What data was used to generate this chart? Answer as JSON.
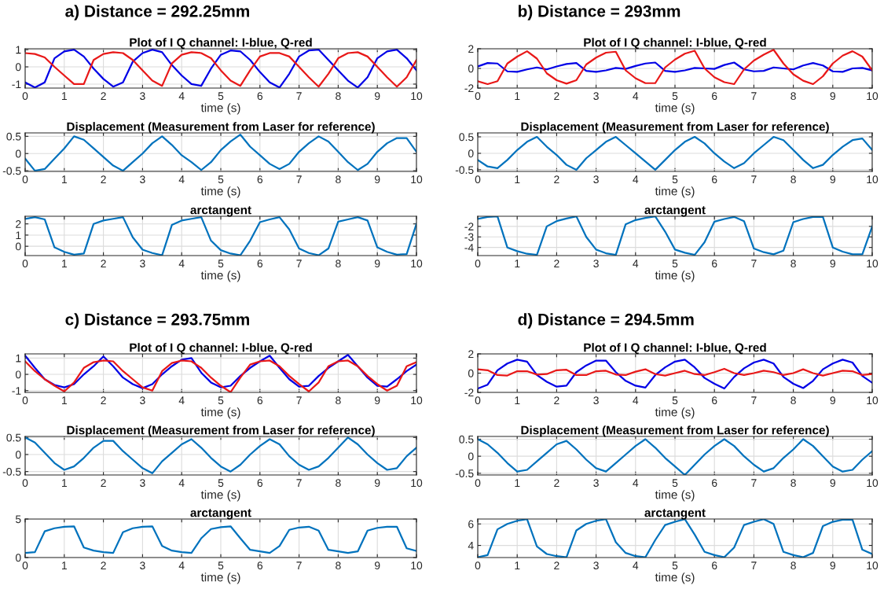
{
  "chart_data": [
    {
      "type": "line",
      "title": "Plot of I Q channel: I-blue, Q-red",
      "xlabel": "time (s)",
      "annotations": [
        "a) Distance = 292.25mm"
      ],
      "xlim": [
        0,
        10
      ],
      "xticks": [
        0,
        1,
        2,
        3,
        4,
        5,
        6,
        7,
        8,
        9,
        10
      ],
      "ylim": [
        -1.23,
        1.05
      ],
      "yticks": [
        -1,
        0,
        1
      ],
      "grid": true,
      "x": [
        0,
        0.25,
        0.5,
        0.75,
        1,
        1.25,
        1.5,
        1.75,
        2,
        2.25,
        2.5,
        2.75,
        3,
        3.25,
        3.5,
        3.75,
        4,
        4.25,
        4.5,
        4.75,
        5,
        5.25,
        5.5,
        5.75,
        6,
        6.25,
        6.5,
        6.75,
        7,
        7.25,
        7.5,
        7.75,
        8,
        8.25,
        8.5,
        8.75,
        9,
        9.25,
        9.5,
        9.75,
        10
      ],
      "series": [
        {
          "color": "#0000e6",
          "values": [
            -0.9,
            -1.2,
            -0.9,
            0.5,
            0.9,
            1.0,
            0.6,
            -0.1,
            -0.7,
            -1.15,
            -0.9,
            0.3,
            0.8,
            1.0,
            0.85,
            0.1,
            -0.5,
            -1.0,
            -1.1,
            -0.1,
            0.7,
            0.95,
            0.9,
            0.4,
            -0.3,
            -0.9,
            -1.2,
            -0.4,
            0.6,
            0.95,
            1.0,
            0.4,
            -0.2,
            -0.8,
            -1.2,
            -0.6,
            0.5,
            0.9,
            1.0,
            0.5,
            -0.2
          ]
        },
        {
          "color": "#e81818",
          "values": [
            0.8,
            0.75,
            0.55,
            0.0,
            -0.5,
            -1.0,
            -1.0,
            0.4,
            0.75,
            0.85,
            0.8,
            0.4,
            -0.2,
            -0.8,
            -1.1,
            0.2,
            0.7,
            0.85,
            0.8,
            0.5,
            -0.2,
            -0.8,
            -1.1,
            -0.2,
            0.6,
            0.8,
            0.8,
            0.6,
            0.0,
            -0.6,
            -1.15,
            -0.4,
            0.5,
            0.8,
            0.85,
            0.6,
            0.0,
            -0.6,
            -1.15,
            -0.6,
            0.4
          ]
        }
      ]
    },
    {
      "type": "line",
      "title": "Displacement (Measurement from Laser for reference)",
      "xlabel": "time (s)",
      "xlim": [
        0,
        10
      ],
      "xticks": [
        0,
        1,
        2,
        3,
        4,
        5,
        6,
        7,
        8,
        9,
        10
      ],
      "ylim": [
        -0.52,
        0.6
      ],
      "yticks": [
        -0.5,
        0,
        0.5
      ],
      "grid": true,
      "x": [
        0,
        0.25,
        0.5,
        0.75,
        1,
        1.25,
        1.5,
        1.75,
        2,
        2.25,
        2.5,
        2.75,
        3,
        3.25,
        3.5,
        3.75,
        4,
        4.25,
        4.5,
        4.75,
        5,
        5.25,
        5.5,
        5.75,
        6,
        6.25,
        6.5,
        6.75,
        7,
        7.25,
        7.5,
        7.75,
        8,
        8.25,
        8.5,
        8.75,
        9,
        9.25,
        9.5,
        9.75,
        10
      ],
      "series": [
        {
          "color": "#0072bd",
          "values": [
            -0.15,
            -0.5,
            -0.45,
            -0.15,
            0.15,
            0.5,
            0.4,
            0.15,
            -0.1,
            -0.35,
            -0.5,
            -0.25,
            0.0,
            0.3,
            0.5,
            0.25,
            -0.05,
            -0.25,
            -0.48,
            -0.25,
            0.1,
            0.35,
            0.55,
            0.2,
            -0.05,
            -0.3,
            -0.45,
            -0.3,
            0.05,
            0.3,
            0.5,
            0.35,
            0.05,
            -0.25,
            -0.48,
            -0.3,
            0.05,
            0.3,
            0.45,
            0.45,
            0.05
          ]
        }
      ]
    },
    {
      "type": "line",
      "title": "arctangent",
      "xlabel": "time (s)",
      "xlim": [
        0,
        10
      ],
      "xticks": [
        0,
        1,
        2,
        3,
        4,
        5,
        6,
        7,
        8,
        9,
        10
      ],
      "ylim": [
        -0.83,
        2.68
      ],
      "yticks": [
        0,
        1,
        2
      ],
      "grid": true,
      "x": [
        0,
        0.25,
        0.5,
        0.75,
        1,
        1.25,
        1.5,
        1.75,
        2,
        2.25,
        2.5,
        2.75,
        3,
        3.25,
        3.5,
        3.75,
        4,
        4.25,
        4.5,
        4.75,
        5,
        5.25,
        5.5,
        5.75,
        6,
        6.25,
        6.5,
        6.75,
        7,
        7.25,
        7.5,
        7.75,
        8,
        8.25,
        8.5,
        8.75,
        9,
        9.25,
        9.5,
        9.75,
        10
      ],
      "series": [
        {
          "color": "#0072bd",
          "values": [
            2.45,
            2.6,
            2.4,
            -0.1,
            -0.5,
            -0.75,
            -0.65,
            2.0,
            2.3,
            2.45,
            2.6,
            0.8,
            -0.3,
            -0.6,
            -0.8,
            1.9,
            2.3,
            2.45,
            2.6,
            0.5,
            -0.35,
            -0.65,
            -0.8,
            0.5,
            2.15,
            2.4,
            2.6,
            1.5,
            -0.2,
            -0.6,
            -0.8,
            -0.2,
            2.2,
            2.4,
            2.6,
            2.3,
            -0.1,
            -0.5,
            -0.75,
            -0.7,
            2.0
          ]
        }
      ]
    },
    {
      "type": "line",
      "title": "Plot of I Q channel: I-blue, Q-red",
      "xlabel": "time (s)",
      "annotations": [
        "b) Distance = 293mm"
      ],
      "xlim": [
        0,
        10
      ],
      "xticks": [
        0,
        1,
        2,
        3,
        4,
        5,
        6,
        7,
        8,
        9,
        10
      ],
      "ylim": [
        -2,
        2
      ],
      "yticks": [
        -2,
        0,
        2
      ],
      "grid": true,
      "x": [
        0,
        0.25,
        0.5,
        0.75,
        1,
        1.25,
        1.5,
        1.75,
        2,
        2.25,
        2.5,
        2.75,
        3,
        3.25,
        3.5,
        3.75,
        4,
        4.25,
        4.5,
        4.75,
        5,
        5.25,
        5.5,
        5.75,
        6,
        6.25,
        6.5,
        6.75,
        7,
        7.25,
        7.5,
        7.75,
        8,
        8.25,
        8.5,
        8.75,
        9,
        9.25,
        9.5,
        9.75,
        10
      ],
      "series": [
        {
          "color": "#0000e6",
          "values": [
            0.2,
            0.55,
            0.5,
            -0.3,
            -0.35,
            -0.1,
            0.1,
            -0.1,
            0.2,
            0.45,
            0.55,
            -0.25,
            -0.35,
            -0.2,
            0.05,
            -0.05,
            0.25,
            0.5,
            0.6,
            -0.25,
            -0.35,
            -0.2,
            0.05,
            0.0,
            -0.05,
            0.35,
            0.6,
            -0.1,
            -0.3,
            -0.25,
            0.1,
            0.0,
            -0.1,
            0.3,
            0.55,
            0.3,
            -0.3,
            -0.35,
            0.0,
            0.05,
            -0.2
          ]
        },
        {
          "color": "#e81818",
          "values": [
            -1.3,
            -1.6,
            -1.3,
            0.5,
            1.2,
            1.75,
            1.0,
            -0.5,
            -1.2,
            -1.55,
            -1.2,
            0.4,
            1.1,
            1.6,
            1.7,
            -0.2,
            -1.0,
            -1.5,
            -1.5,
            0.1,
            0.9,
            1.5,
            1.8,
            0.0,
            -0.9,
            -1.4,
            -1.6,
            -0.1,
            0.8,
            1.4,
            1.9,
            0.5,
            -0.6,
            -1.25,
            -1.6,
            -0.8,
            0.5,
            1.3,
            1.75,
            1.2,
            -0.2
          ]
        }
      ]
    },
    {
      "type": "line",
      "title": "Displacement (Measurement from Laser for reference)",
      "xlabel": "time (s)",
      "xlim": [
        0,
        10
      ],
      "xticks": [
        0,
        1,
        2,
        3,
        4,
        5,
        6,
        7,
        8,
        9,
        10
      ],
      "ylim": [
        -0.55,
        0.62
      ],
      "yticks": [
        -0.5,
        0,
        0.5
      ],
      "grid": true,
      "x": [
        0,
        0.25,
        0.5,
        0.75,
        1,
        1.25,
        1.5,
        1.75,
        2,
        2.25,
        2.5,
        2.75,
        3,
        3.25,
        3.5,
        3.75,
        4,
        4.25,
        4.5,
        4.75,
        5,
        5.25,
        5.5,
        5.75,
        6,
        6.25,
        6.5,
        6.75,
        7,
        7.25,
        7.5,
        7.75,
        8,
        8.25,
        8.5,
        8.75,
        9,
        9.25,
        9.5,
        9.75,
        10
      ],
      "series": [
        {
          "color": "#0072bd",
          "values": [
            -0.2,
            -0.4,
            -0.45,
            -0.2,
            0.1,
            0.35,
            0.5,
            0.2,
            -0.05,
            -0.35,
            -0.5,
            -0.15,
            0.1,
            0.35,
            0.5,
            0.25,
            0.0,
            -0.25,
            -0.5,
            -0.2,
            0.1,
            0.35,
            0.5,
            0.3,
            0.0,
            -0.25,
            -0.45,
            -0.3,
            0.0,
            0.25,
            0.5,
            0.4,
            0.1,
            -0.2,
            -0.45,
            -0.35,
            -0.05,
            0.2,
            0.4,
            0.45,
            0.1
          ]
        }
      ]
    },
    {
      "type": "line",
      "title": "arctangent",
      "xlabel": "time (s)",
      "xlim": [
        0,
        10
      ],
      "xticks": [
        0,
        1,
        2,
        3,
        4,
        5,
        6,
        7,
        8,
        9,
        10
      ],
      "ylim": [
        -4.77,
        -1.04
      ],
      "yticks": [
        -4,
        -3,
        -2
      ],
      "grid": true,
      "x": [
        0,
        0.25,
        0.5,
        0.75,
        1,
        1.25,
        1.5,
        1.75,
        2,
        2.25,
        2.5,
        2.75,
        3,
        3.25,
        3.5,
        3.75,
        4,
        4.25,
        4.5,
        4.75,
        5,
        5.25,
        5.5,
        5.75,
        6,
        6.25,
        6.5,
        6.75,
        7,
        7.25,
        7.5,
        7.75,
        8,
        8.25,
        8.5,
        8.75,
        9,
        9.25,
        9.5,
        9.75,
        10
      ],
      "series": [
        {
          "color": "#0072bd",
          "values": [
            -1.3,
            -1.1,
            -1.05,
            -4.0,
            -4.35,
            -4.6,
            -4.7,
            -2.0,
            -1.5,
            -1.25,
            -1.05,
            -3.0,
            -4.2,
            -4.55,
            -4.7,
            -1.8,
            -1.4,
            -1.2,
            -1.05,
            -2.5,
            -4.2,
            -4.5,
            -4.7,
            -3.5,
            -1.55,
            -1.3,
            -1.1,
            -1.5,
            -4.1,
            -4.45,
            -4.65,
            -4.3,
            -1.6,
            -1.3,
            -1.1,
            -1.1,
            -4.0,
            -4.4,
            -4.65,
            -4.65,
            -2.0
          ]
        }
      ]
    },
    {
      "type": "line",
      "title": "Plot of I Q channel: I-blue, Q-red",
      "xlabel": "time (s)",
      "annotations": [
        "c) Distance = 293.75mm"
      ],
      "xlim": [
        0,
        10
      ],
      "xticks": [
        0,
        1,
        2,
        3,
        4,
        5,
        6,
        7,
        8,
        9,
        10
      ],
      "ylim": [
        -1.11,
        1.26
      ],
      "yticks": [
        -1,
        0,
        1
      ],
      "grid": true,
      "x": [
        0,
        0.25,
        0.5,
        0.75,
        1,
        1.25,
        1.5,
        1.75,
        2,
        2.25,
        2.5,
        2.75,
        3,
        3.25,
        3.5,
        3.75,
        4,
        4.25,
        4.5,
        4.75,
        5,
        5.25,
        5.5,
        5.75,
        6,
        6.25,
        6.5,
        6.75,
        7,
        7.25,
        7.5,
        7.75,
        8,
        8.25,
        8.5,
        8.75,
        9,
        9.25,
        9.5,
        9.75,
        10
      ],
      "series": [
        {
          "color": "#0000e6",
          "values": [
            1.15,
            0.4,
            -0.3,
            -0.65,
            -0.8,
            -0.6,
            0.0,
            0.5,
            1.1,
            0.5,
            -0.2,
            -0.6,
            -0.85,
            -0.6,
            0.0,
            0.5,
            0.9,
            1.0,
            0.1,
            -0.5,
            -0.8,
            -0.7,
            -0.1,
            0.4,
            0.8,
            1.15,
            0.4,
            -0.3,
            -0.75,
            -0.7,
            -0.1,
            0.4,
            0.8,
            1.2,
            0.5,
            -0.2,
            -0.7,
            -0.75,
            -0.3,
            0.2,
            0.6
          ]
        },
        {
          "color": "#e81818",
          "values": [
            0.8,
            0.2,
            -0.3,
            -0.7,
            -1.05,
            -0.5,
            0.4,
            0.75,
            0.85,
            0.8,
            0.2,
            -0.3,
            -0.8,
            -1.0,
            0.2,
            0.7,
            0.85,
            0.8,
            0.4,
            -0.2,
            -0.7,
            -1.1,
            -0.2,
            0.6,
            0.8,
            0.85,
            0.5,
            -0.1,
            -0.6,
            -1.05,
            -0.5,
            0.5,
            0.8,
            0.85,
            0.5,
            -0.1,
            -0.6,
            -1.0,
            -0.7,
            0.5,
            0.75
          ]
        }
      ]
    },
    {
      "type": "line",
      "title": "Displacement (Measurement from Laser for reference)",
      "xlabel": "time (s)",
      "xlim": [
        0,
        10
      ],
      "xticks": [
        0,
        1,
        2,
        3,
        4,
        5,
        6,
        7,
        8,
        9,
        10
      ],
      "ylim": [
        -0.6,
        0.53
      ],
      "yticks": [
        -0.5,
        0,
        0.5
      ],
      "grid": true,
      "x": [
        0,
        0.25,
        0.5,
        0.75,
        1,
        1.25,
        1.5,
        1.75,
        2,
        2.25,
        2.5,
        2.75,
        3,
        3.25,
        3.5,
        3.75,
        4,
        4.25,
        4.5,
        4.75,
        5,
        5.25,
        5.5,
        5.75,
        6,
        6.25,
        6.5,
        6.75,
        7,
        7.25,
        7.5,
        7.75,
        8,
        8.25,
        8.5,
        8.75,
        9,
        9.25,
        9.5,
        9.75,
        10
      ],
      "series": [
        {
          "color": "#0072bd",
          "values": [
            0.5,
            0.35,
            0.05,
            -0.25,
            -0.45,
            -0.35,
            -0.1,
            0.2,
            0.4,
            0.4,
            0.1,
            -0.15,
            -0.4,
            -0.55,
            -0.2,
            0.05,
            0.3,
            0.45,
            0.2,
            -0.1,
            -0.35,
            -0.5,
            -0.3,
            0.0,
            0.25,
            0.45,
            0.3,
            -0.05,
            -0.3,
            -0.45,
            -0.35,
            -0.1,
            0.2,
            0.5,
            0.3,
            0.0,
            -0.25,
            -0.45,
            -0.4,
            -0.05,
            0.2
          ]
        }
      ]
    },
    {
      "type": "line",
      "title": "arctangent",
      "xlabel": "time (s)",
      "xlim": [
        0,
        10
      ],
      "xticks": [
        0,
        1,
        2,
        3,
        4,
        5,
        6,
        7,
        8,
        9,
        10
      ],
      "ylim": [
        0,
        5
      ],
      "yticks": [
        0,
        5
      ],
      "grid": true,
      "x": [
        0,
        0.25,
        0.5,
        0.75,
        1,
        1.25,
        1.5,
        1.75,
        2,
        2.25,
        2.5,
        2.75,
        3,
        3.25,
        3.5,
        3.75,
        4,
        4.25,
        4.5,
        4.75,
        5,
        5.25,
        5.5,
        5.75,
        6,
        6.25,
        6.5,
        6.75,
        7,
        7.25,
        7.5,
        7.75,
        8,
        8.25,
        8.5,
        8.75,
        9,
        9.25,
        9.5,
        9.75,
        10
      ],
      "series": [
        {
          "color": "#0072bd",
          "values": [
            0.6,
            0.7,
            3.4,
            3.8,
            4.0,
            4.05,
            1.3,
            0.9,
            0.7,
            0.6,
            3.3,
            3.8,
            4.0,
            4.05,
            1.5,
            0.9,
            0.7,
            0.6,
            2.5,
            3.7,
            3.95,
            4.05,
            2.5,
            1.0,
            0.8,
            0.6,
            1.5,
            3.6,
            3.9,
            4.0,
            3.5,
            1.0,
            0.8,
            0.6,
            0.8,
            3.5,
            3.85,
            4.0,
            4.0,
            1.2,
            0.85
          ]
        }
      ]
    },
    {
      "type": "line",
      "title": "Plot of I Q channel: I-blue, Q-red",
      "xlabel": "time (s)",
      "annotations": [
        "d) Distance = 294.5mm"
      ],
      "xlim": [
        0,
        10
      ],
      "xticks": [
        0,
        1,
        2,
        3,
        4,
        5,
        6,
        7,
        8,
        9,
        10
      ],
      "ylim": [
        -2,
        2
      ],
      "yticks": [
        -2,
        0,
        2
      ],
      "grid": true,
      "x": [
        0,
        0.25,
        0.5,
        0.75,
        1,
        1.25,
        1.5,
        1.75,
        2,
        2.25,
        2.5,
        2.75,
        3,
        3.25,
        3.5,
        3.75,
        4,
        4.25,
        4.5,
        4.75,
        5,
        5.25,
        5.5,
        5.75,
        6,
        6.25,
        6.5,
        6.75,
        7,
        7.25,
        7.5,
        7.75,
        8,
        8.25,
        8.5,
        8.75,
        9,
        9.25,
        9.5,
        9.75,
        10
      ],
      "series": [
        {
          "color": "#0000e6",
          "values": [
            -1.6,
            -1.2,
            0.3,
            1.0,
            1.4,
            1.2,
            -0.2,
            -0.9,
            -1.4,
            -1.3,
            0.1,
            0.8,
            1.3,
            1.3,
            0.1,
            -0.8,
            -1.3,
            -1.5,
            -0.2,
            0.6,
            1.2,
            1.4,
            0.6,
            -0.5,
            -1.1,
            -1.6,
            -0.4,
            0.5,
            1.1,
            1.4,
            1.0,
            -0.4,
            -1.1,
            -1.55,
            -0.8,
            0.4,
            1.0,
            1.4,
            1.1,
            -0.3,
            -1.0
          ]
        },
        {
          "color": "#e81818",
          "values": [
            0.4,
            0.3,
            -0.2,
            -0.25,
            0.2,
            0.2,
            -0.15,
            -0.1,
            0.3,
            0.35,
            -0.2,
            -0.2,
            0.2,
            0.25,
            -0.15,
            -0.2,
            0.15,
            0.4,
            -0.1,
            -0.25,
            0.0,
            0.25,
            -0.1,
            -0.2,
            0.1,
            0.45,
            0.0,
            -0.2,
            0.0,
            0.25,
            0.1,
            -0.2,
            0.0,
            0.4,
            0.0,
            -0.25,
            0.0,
            0.25,
            0.2,
            -0.2,
            -0.1
          ]
        }
      ]
    },
    {
      "type": "line",
      "title": "Displacement (Measurement from Laser for reference)",
      "xlabel": "time (s)",
      "xlim": [
        0,
        10
      ],
      "xticks": [
        0,
        1,
        2,
        3,
        4,
        5,
        6,
        7,
        8,
        9,
        10
      ],
      "ylim": [
        -0.55,
        0.58
      ],
      "yticks": [
        -0.5,
        0,
        0.5
      ],
      "grid": true,
      "x": [
        0,
        0.25,
        0.5,
        0.75,
        1,
        1.25,
        1.5,
        1.75,
        2,
        2.25,
        2.5,
        2.75,
        3,
        3.25,
        3.5,
        3.75,
        4,
        4.25,
        4.5,
        4.75,
        5,
        5.25,
        5.5,
        5.75,
        6,
        6.25,
        6.5,
        6.75,
        7,
        7.25,
        7.5,
        7.75,
        8,
        8.25,
        8.5,
        8.75,
        9,
        9.25,
        9.5,
        9.75,
        10
      ],
      "series": [
        {
          "color": "#0072bd",
          "values": [
            0.5,
            0.35,
            0.1,
            -0.2,
            -0.45,
            -0.4,
            -0.15,
            0.1,
            0.35,
            0.45,
            0.2,
            -0.1,
            -0.35,
            -0.45,
            -0.2,
            0.05,
            0.3,
            0.5,
            0.25,
            -0.05,
            -0.3,
            -0.55,
            -0.25,
            0.05,
            0.3,
            0.5,
            0.3,
            0.0,
            -0.25,
            -0.45,
            -0.35,
            -0.05,
            0.2,
            0.5,
            0.3,
            0.0,
            -0.3,
            -0.45,
            -0.4,
            -0.1,
            0.15
          ]
        }
      ]
    },
    {
      "type": "line",
      "title": "arctangent",
      "xlabel": "time (s)",
      "xlim": [
        0,
        10
      ],
      "xticks": [
        0,
        1,
        2,
        3,
        4,
        5,
        6,
        7,
        8,
        9,
        10
      ],
      "ylim": [
        2.87,
        6.46
      ],
      "yticks": [
        4,
        6
      ],
      "grid": true,
      "x": [
        0,
        0.25,
        0.5,
        0.75,
        1,
        1.25,
        1.5,
        1.75,
        2,
        2.25,
        2.5,
        2.75,
        3,
        3.25,
        3.5,
        3.75,
        4,
        4.25,
        4.5,
        4.75,
        5,
        5.25,
        5.5,
        5.75,
        6,
        6.25,
        6.5,
        6.75,
        7,
        7.25,
        7.5,
        7.75,
        8,
        8.25,
        8.5,
        8.75,
        9,
        9.25,
        9.5,
        9.75,
        10
      ],
      "series": [
        {
          "color": "#0072bd",
          "values": [
            2.9,
            3.1,
            5.5,
            6.0,
            6.3,
            6.45,
            3.9,
            3.2,
            3.0,
            2.9,
            5.4,
            6.0,
            6.3,
            6.45,
            4.3,
            3.3,
            3.0,
            2.9,
            4.5,
            5.9,
            6.2,
            6.45,
            5.0,
            3.4,
            3.1,
            2.9,
            3.8,
            5.9,
            6.2,
            6.45,
            6.0,
            3.4,
            3.1,
            2.9,
            3.3,
            5.8,
            6.2,
            6.4,
            6.4,
            3.6,
            3.2
          ]
        }
      ]
    }
  ]
}
